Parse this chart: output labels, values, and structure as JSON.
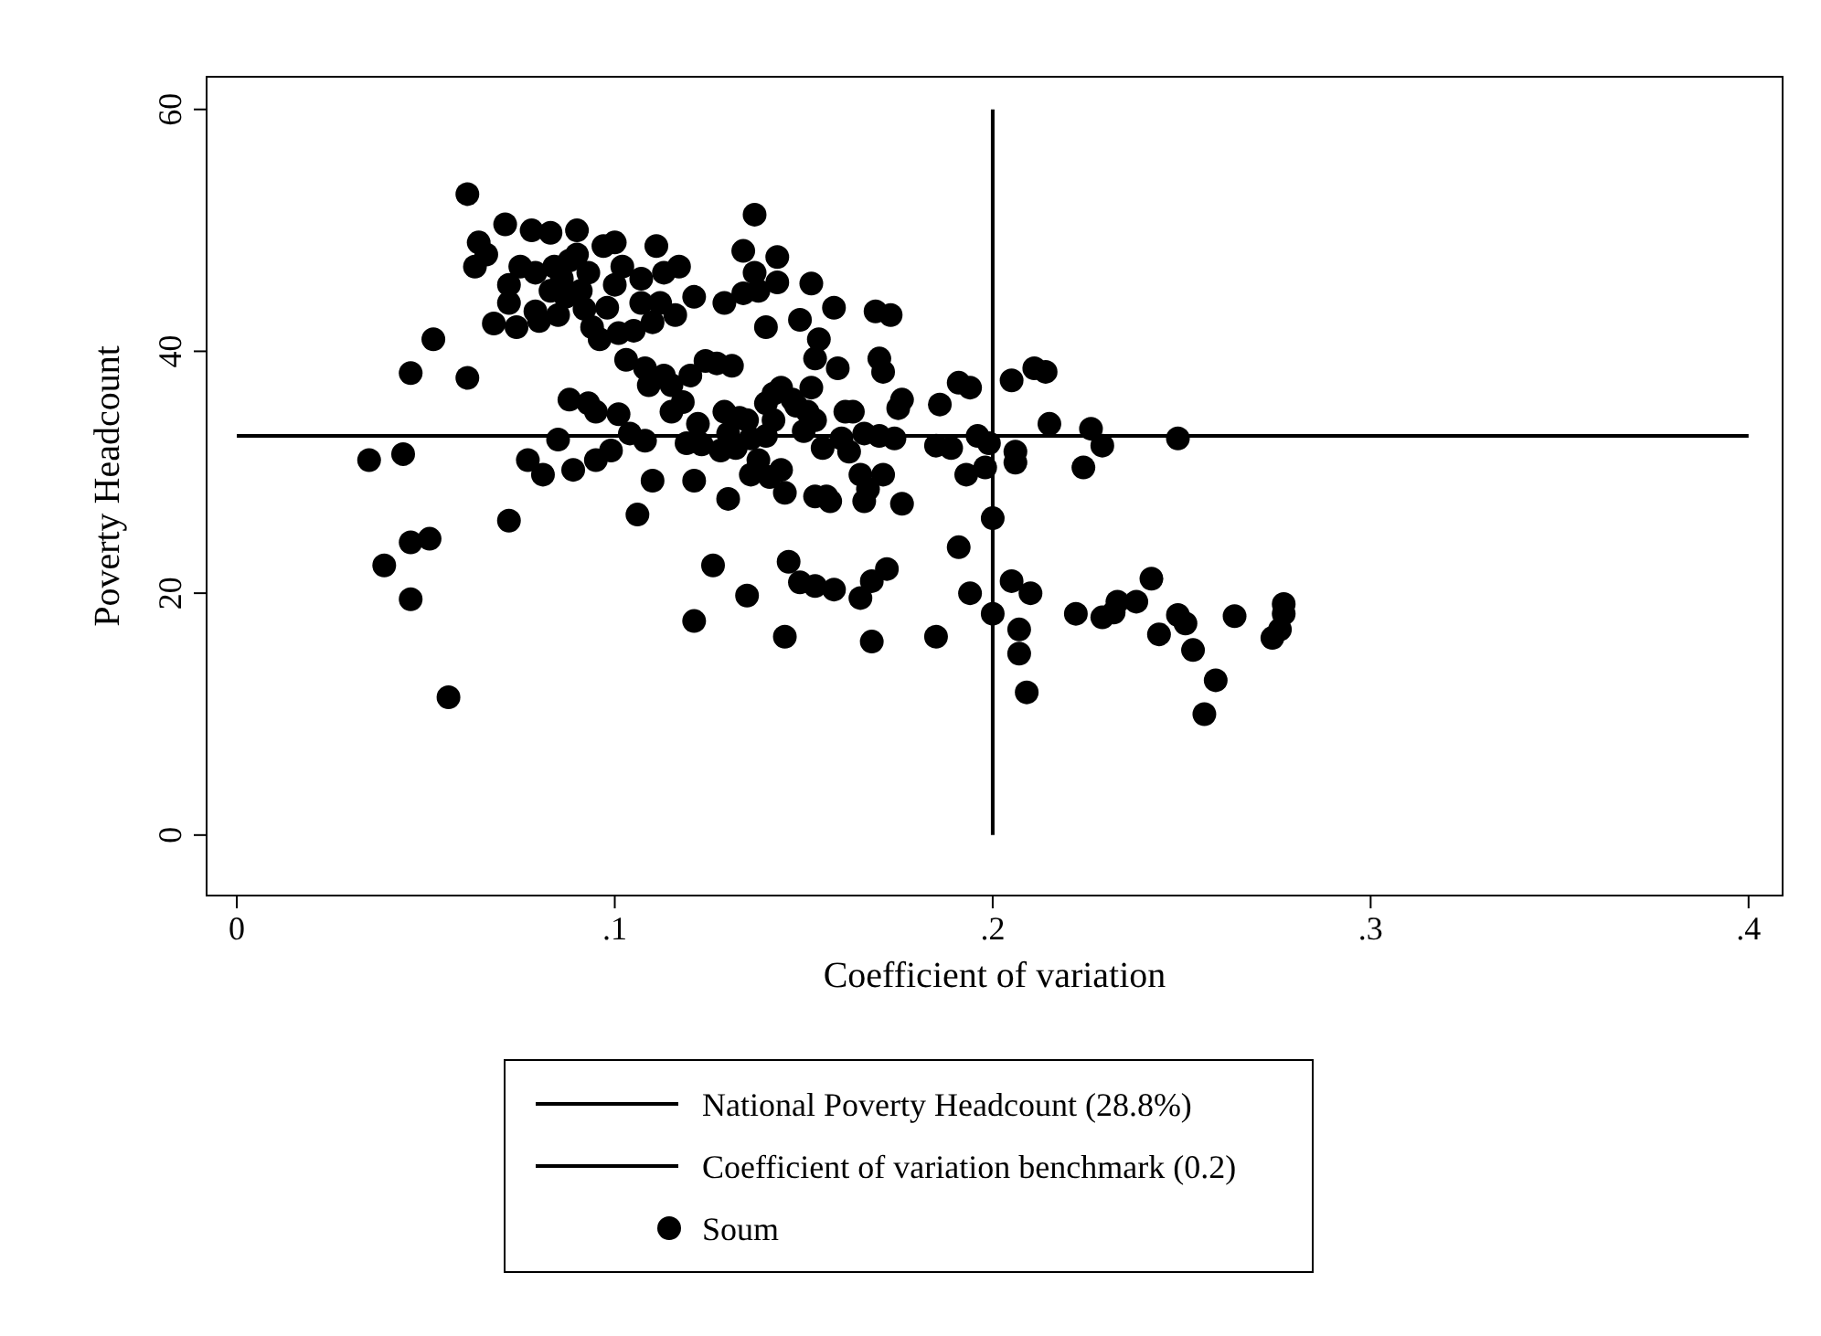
{
  "chart_data": {
    "type": "scatter",
    "xlabel": "Coefficient of variation",
    "ylabel": "Poverty Headcount",
    "xlim": [
      -0.008,
      0.409
    ],
    "ylim": [
      -5,
      62.7
    ],
    "xticks": [
      0,
      {
        "value": 0.1,
        "label": ".1"
      },
      {
        "value": 0.2,
        "label": ".2"
      },
      {
        "value": 0.3,
        "label": ".3"
      },
      {
        "value": 0.4,
        "label": ".4"
      }
    ],
    "yticks": [
      0,
      20,
      40,
      60
    ],
    "grid": false,
    "legend": "bottom",
    "series": [
      {
        "name": "National Poverty Headcount (28.8%)",
        "type": "line",
        "color": "#000000",
        "line_style": "solid",
        "x": [
          0,
          0.4
        ],
        "values": [
          33,
          33
        ]
      },
      {
        "name": "Coefficient of variation benchmark (0.2)",
        "type": "line",
        "color": "#000000",
        "line_style": "solid",
        "x": [
          0.2,
          0.2
        ],
        "values": [
          0,
          60
        ]
      },
      {
        "name": "Soum",
        "color": "#000000",
        "marker": "circle",
        "x": [
          0.035,
          0.039,
          0.044,
          0.046,
          0.046,
          0.046,
          0.051,
          0.052,
          0.056,
          0.061,
          0.061,
          0.063,
          0.064,
          0.066,
          0.068,
          0.071,
          0.072,
          0.072,
          0.072,
          0.074,
          0.075,
          0.077,
          0.078,
          0.079,
          0.079,
          0.08,
          0.081,
          0.083,
          0.083,
          0.084,
          0.085,
          0.085,
          0.086,
          0.087,
          0.088,
          0.088,
          0.089,
          0.09,
          0.09,
          0.091,
          0.092,
          0.093,
          0.093,
          0.094,
          0.095,
          0.095,
          0.096,
          0.097,
          0.098,
          0.099,
          0.1,
          0.1,
          0.101,
          0.101,
          0.102,
          0.103,
          0.104,
          0.105,
          0.106,
          0.107,
          0.107,
          0.108,
          0.108,
          0.109,
          0.11,
          0.11,
          0.111,
          0.112,
          0.113,
          0.113,
          0.115,
          0.115,
          0.116,
          0.117,
          0.118,
          0.119,
          0.12,
          0.121,
          0.121,
          0.121,
          0.122,
          0.123,
          0.124,
          0.126,
          0.127,
          0.128,
          0.129,
          0.129,
          0.13,
          0.13,
          0.131,
          0.132,
          0.133,
          0.134,
          0.134,
          0.135,
          0.135,
          0.136,
          0.136,
          0.137,
          0.137,
          0.138,
          0.138,
          0.14,
          0.14,
          0.14,
          0.141,
          0.142,
          0.142,
          0.143,
          0.143,
          0.144,
          0.144,
          0.145,
          0.145,
          0.146,
          0.147,
          0.148,
          0.149,
          0.149,
          0.15,
          0.151,
          0.152,
          0.152,
          0.153,
          0.153,
          0.153,
          0.153,
          0.154,
          0.155,
          0.156,
          0.157,
          0.158,
          0.158,
          0.159,
          0.16,
          0.161,
          0.162,
          0.163,
          0.165,
          0.165,
          0.166,
          0.166,
          0.167,
          0.168,
          0.168,
          0.169,
          0.17,
          0.17,
          0.171,
          0.171,
          0.172,
          0.173,
          0.174,
          0.175,
          0.176,
          0.176,
          0.185,
          0.185,
          0.186,
          0.189,
          0.191,
          0.191,
          0.193,
          0.194,
          0.194,
          0.196,
          0.198,
          0.199,
          0.2,
          0.2,
          0.205,
          0.205,
          0.206,
          0.206,
          0.207,
          0.207,
          0.209,
          0.21,
          0.211,
          0.214,
          0.215,
          0.222,
          0.224,
          0.226,
          0.229,
          0.229,
          0.232,
          0.233,
          0.238,
          0.242,
          0.244,
          0.249,
          0.249,
          0.251,
          0.253,
          0.256,
          0.259,
          0.264,
          0.274,
          0.276,
          0.277,
          0.277
        ],
        "values": [
          31,
          22.3,
          31.5,
          38.2,
          24.2,
          19.5,
          24.5,
          41,
          11.4,
          37.8,
          53,
          47,
          49,
          48,
          42.3,
          50.5,
          45.5,
          44,
          26,
          42,
          47,
          31,
          50,
          46.5,
          43.3,
          42.5,
          29.8,
          49.8,
          45,
          47,
          43,
          32.7,
          46,
          44.5,
          47.5,
          36,
          30.2,
          50,
          48,
          45,
          43.5,
          46.5,
          35.7,
          42,
          31,
          35,
          41,
          48.7,
          43.6,
          31.8,
          49,
          45.5,
          41.5,
          34.8,
          47,
          39.3,
          33.2,
          41.7,
          26.5,
          44,
          46,
          38.6,
          32.6,
          37.2,
          29.3,
          42.4,
          48.7,
          44,
          38,
          46.5,
          37.2,
          35,
          43,
          47,
          35.8,
          32.4,
          38,
          44.5,
          29.3,
          17.7,
          34,
          32.3,
          39.2,
          22.3,
          39,
          31.8,
          35,
          44,
          33.2,
          27.8,
          38.8,
          32,
          34.5,
          44.8,
          48.3,
          34.3,
          19.8,
          32.8,
          29.8,
          51.3,
          46.5,
          31,
          45,
          42,
          35.7,
          33,
          29.6,
          36.5,
          34.3,
          47.8,
          45.7,
          37,
          30.2,
          16.4,
          28.3,
          22.6,
          36,
          35.5,
          42.6,
          20.9,
          33.4,
          35,
          37,
          45.6,
          39.4,
          34.3,
          28,
          20.6,
          41,
          32,
          28,
          27.6,
          43.6,
          20.3,
          38.6,
          32.8,
          35,
          31.7,
          35,
          29.8,
          19.6,
          27.6,
          33.2,
          28.6,
          16,
          21,
          43.3,
          39.4,
          33,
          38.3,
          29.8,
          22,
          43,
          32.8,
          35.3,
          36,
          27.4,
          32.2,
          16.4,
          35.6,
          32,
          23.8,
          37.4,
          29.8,
          37,
          20,
          33,
          30.4,
          32.4,
          26.2,
          18.3,
          37.6,
          21,
          30.8,
          31.7,
          17,
          15,
          11.8,
          20,
          38.6,
          38.3,
          34,
          18.3,
          30.4,
          33.6,
          32.2,
          18,
          18.4,
          19.3,
          19.3,
          21.2,
          16.6,
          18.2,
          32.8,
          17.5,
          15.3,
          10,
          12.8,
          18.1,
          16.3,
          17,
          19.1,
          18.3
        ]
      }
    ]
  }
}
